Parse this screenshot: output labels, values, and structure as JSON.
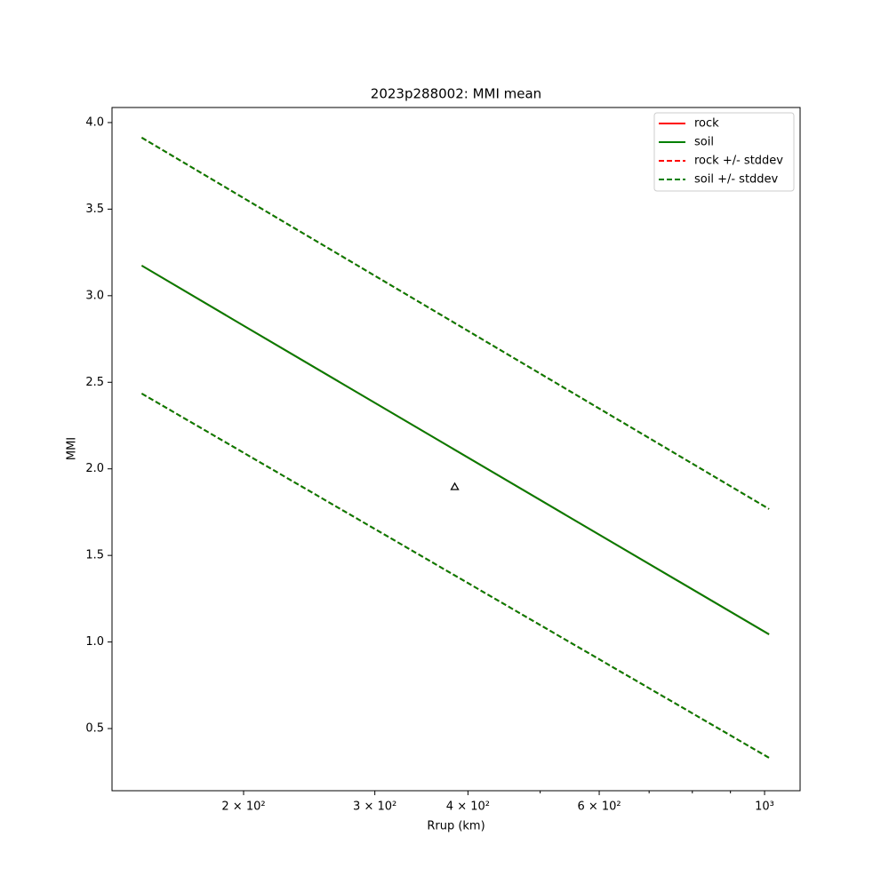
{
  "chart_data": {
    "type": "line",
    "title": "2023p288002: MMI mean",
    "xlabel": "Rrup (km)",
    "ylabel": "MMI",
    "xscale": "log",
    "x": [
      146,
      200,
      500,
      1014
    ],
    "series": [
      {
        "name": "rock",
        "color": "red",
        "style": "solid",
        "values": [
          3.174,
          2.827,
          1.82,
          1.044
        ]
      },
      {
        "name": "soil",
        "color": "green",
        "style": "solid",
        "values": [
          3.174,
          2.827,
          1.82,
          1.044
        ]
      },
      {
        "name": "rock +/- stddev",
        "color": "red",
        "style": "dashed",
        "upper": [
          3.913,
          3.564,
          2.55,
          1.768
        ],
        "lower": [
          2.435,
          2.093,
          1.098,
          0.331
        ]
      },
      {
        "name": "soil +/- stddev",
        "color": "green",
        "style": "dashed",
        "upper": [
          3.913,
          3.564,
          2.55,
          1.768
        ],
        "lower": [
          2.435,
          2.093,
          1.098,
          0.331
        ]
      }
    ],
    "observations": {
      "x": [
        384
      ],
      "values": [
        1.896
      ],
      "marker": "triangle",
      "color": "black"
    },
    "xlim": [
      133.2,
      1116
    ],
    "ylim": [
      0.141,
      4.087
    ],
    "xticks": [
      {
        "value": 200,
        "label": "2 × 10²"
      },
      {
        "value": 300,
        "label": "3 × 10²"
      },
      {
        "value": 400,
        "label": "4 × 10²"
      },
      {
        "value": 600,
        "label": "6 × 10²"
      },
      {
        "value": 1000,
        "label": "10³"
      }
    ],
    "xminorticks": [
      500,
      700,
      800,
      900
    ],
    "yticks": [
      0.5,
      {
        "value": 1,
        "label": "1.0"
      },
      1.5,
      {
        "value": 2,
        "label": "2.0"
      },
      2.5,
      {
        "value": 3,
        "label": "3.0"
      },
      3.5,
      {
        "value": 4,
        "label": "4.0"
      }
    ],
    "grid": false,
    "legend": "upper-right"
  }
}
